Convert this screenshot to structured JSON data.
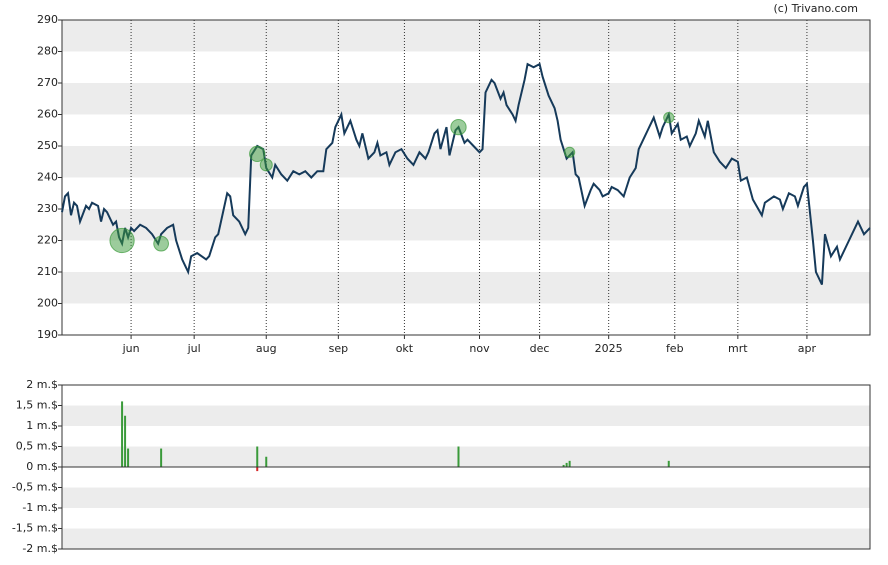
{
  "chart_data": [
    {
      "type": "line",
      "source": "(c) Trivano.com",
      "x": [
        0,
        1,
        2,
        3,
        4,
        5,
        6,
        8,
        9,
        10,
        12,
        13,
        14,
        15,
        17,
        18,
        19,
        20,
        21,
        22,
        23,
        24,
        26,
        28,
        30,
        32,
        33,
        35,
        37,
        38,
        40,
        41,
        42,
        43,
        45,
        48,
        49,
        51,
        52,
        55,
        56,
        57,
        59,
        61,
        62,
        63,
        65,
        67,
        68,
        70,
        71,
        73,
        75,
        77,
        79,
        81,
        83,
        85,
        87,
        88,
        90,
        91,
        93,
        94,
        96,
        98,
        99,
        100,
        102,
        104,
        105,
        106,
        108,
        109,
        111,
        113,
        115,
        117,
        119,
        121,
        122,
        124,
        125,
        126,
        128,
        129,
        131,
        132,
        134,
        135,
        137,
        139,
        140,
        141,
        143,
        144,
        146,
        147,
        148,
        150,
        151,
        152,
        154,
        155,
        157,
        159,
        160,
        162,
        164,
        165,
        166,
        168,
        170,
        171,
        172,
        174,
        176,
        177,
        179,
        180,
        182,
        183,
        185,
        187,
        189,
        191,
        192,
        194,
        195,
        197,
        199,
        200,
        202,
        203,
        205,
        206,
        208,
        209,
        211,
        212,
        214,
        215,
        217,
        219,
        221,
        223,
        225,
        226,
        228,
        230,
        233,
        234,
        237,
        239,
        240,
        242,
        244,
        245,
        247,
        248,
        250,
        251,
        253,
        254,
        256,
        258,
        259,
        262,
        263,
        265,
        267,
        269
      ],
      "series": [
        {
          "color": "#163a5a",
          "values": [
            229,
            234,
            235,
            228,
            232,
            231,
            226,
            231,
            230,
            232,
            231,
            226,
            230,
            229,
            225,
            226,
            221,
            219,
            224,
            221,
            224,
            223,
            225,
            224,
            222,
            219,
            222,
            224,
            225,
            220,
            214,
            212,
            210,
            215,
            216,
            214,
            215,
            221,
            222,
            235,
            234,
            228,
            226,
            222,
            224,
            247,
            250,
            249,
            243,
            240,
            244,
            241,
            239,
            242,
            241,
            242,
            240,
            242,
            242,
            249,
            251,
            256,
            260,
            254,
            258,
            252,
            250,
            254,
            246,
            248,
            251,
            247,
            248,
            244,
            248,
            249,
            246,
            244,
            248,
            246,
            248,
            254,
            255,
            249,
            256,
            247,
            255,
            256,
            251,
            252,
            250,
            248,
            249,
            267,
            271,
            270,
            265,
            267,
            263,
            260,
            258,
            263,
            271,
            276,
            275,
            276,
            272,
            266,
            262,
            258,
            252,
            246,
            248,
            241,
            240,
            231,
            236,
            238,
            236,
            234,
            235,
            237,
            236,
            234,
            240,
            243,
            249,
            253,
            255,
            259,
            253,
            256,
            260,
            254,
            257,
            252,
            253,
            250,
            254,
            258,
            253,
            258,
            248,
            245,
            243,
            246,
            245,
            239,
            240,
            233,
            228,
            232,
            234,
            233,
            230,
            235,
            234,
            231,
            237,
            238,
            220,
            210,
            206,
            222,
            215,
            218,
            214,
            220,
            222,
            226,
            222,
            224
          ]
        }
      ],
      "markers": {
        "color": "#3a9a3a",
        "x": [
          20,
          33,
          65,
          68,
          132,
          169,
          202
        ],
        "values": [
          220,
          219,
          247.5,
          244,
          256,
          248,
          259
        ],
        "sizes": [
          1.6,
          0.45,
          0.5,
          0.25,
          0.5,
          0.15,
          0.15
        ]
      },
      "xlim": [
        0,
        269
      ],
      "xticks": [
        {
          "value": 23,
          "label": "jun"
        },
        {
          "value": 44,
          "label": "jul"
        },
        {
          "value": 68,
          "label": "aug"
        },
        {
          "value": 92,
          "label": "sep"
        },
        {
          "value": 114,
          "label": "okt"
        },
        {
          "value": 139,
          "label": "nov"
        },
        {
          "value": 159,
          "label": "dec"
        },
        {
          "value": 182,
          "label": "2025"
        },
        {
          "value": 204,
          "label": "feb"
        },
        {
          "value": 225,
          "label": "mrt"
        },
        {
          "value": 248,
          "label": "apr"
        }
      ],
      "ylim": [
        190,
        290
      ],
      "yticks": [
        190,
        200,
        210,
        220,
        230,
        240,
        250,
        260,
        270,
        280,
        290
      ],
      "grid": true
    },
    {
      "type": "bar",
      "xlim": [
        0,
        269
      ],
      "series": [
        {
          "color": "#3a9a3a",
          "x": [
            20,
            21,
            22,
            33,
            65,
            68,
            132,
            167,
            168,
            169,
            202
          ],
          "values": [
            1.6,
            1.25,
            0.45,
            0.45,
            0.5,
            0.25,
            0.5,
            0.05,
            0.1,
            0.15,
            0.15
          ]
        },
        {
          "color": "#d62728",
          "x": [
            65
          ],
          "values": [
            -0.1
          ]
        }
      ],
      "ylim": [
        -2,
        2
      ],
      "yticks": [
        {
          "value": -2,
          "label": "-2 m.$"
        },
        {
          "value": -1.5,
          "label": "-1,5 m.$"
        },
        {
          "value": -1,
          "label": "-1 m.$"
        },
        {
          "value": -0.5,
          "label": "-0,5 m.$"
        },
        {
          "value": 0,
          "label": "0 m.$"
        },
        {
          "value": 0.5,
          "label": "0,5 m.$"
        },
        {
          "value": 1,
          "label": "1 m.$"
        },
        {
          "value": 1.5,
          "label": "1,5 m.$"
        },
        {
          "value": 2,
          "label": "2 m.$"
        }
      ]
    }
  ]
}
